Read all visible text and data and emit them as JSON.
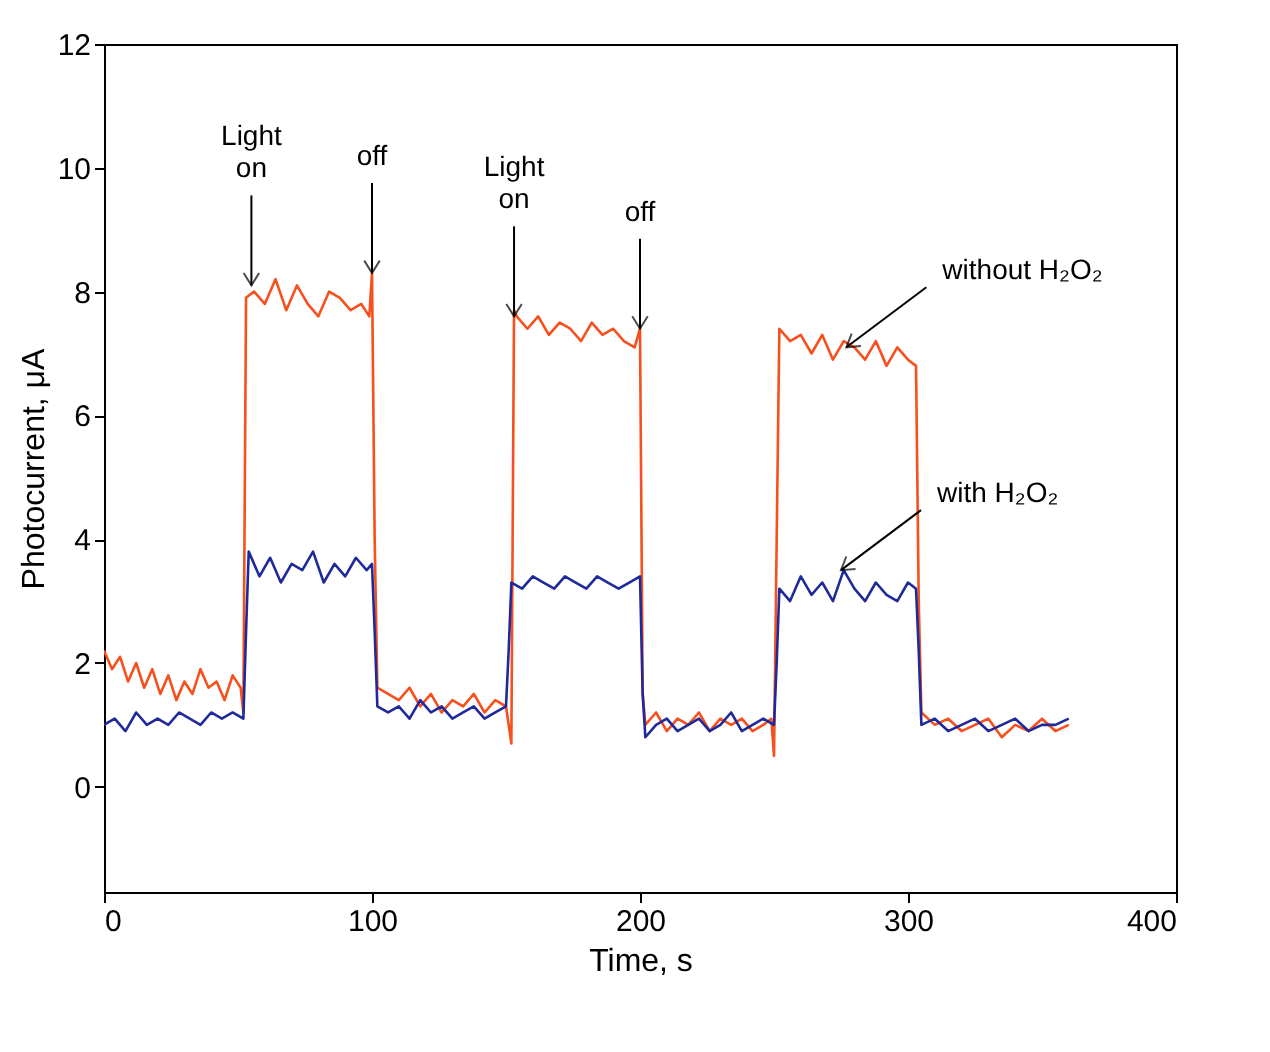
{
  "chart_data": {
    "type": "line",
    "xlabel": "Time, s",
    "ylabel": "Photocurrent, μA",
    "xlim": [
      0,
      400
    ],
    "xticks": [
      0,
      100,
      200,
      300,
      400
    ],
    "ylim": [
      -1.7,
      12
    ],
    "yticks": [
      0,
      2,
      4,
      6,
      8,
      10,
      12
    ],
    "grid": false,
    "marker": "none",
    "line_style": "solid",
    "series": [
      {
        "color": "#f5501e",
        "x": [
          0,
          3,
          6,
          9,
          12,
          15,
          18,
          21,
          24,
          27,
          30,
          33,
          36,
          39,
          42,
          45,
          48,
          51,
          52,
          53,
          56,
          60,
          64,
          68,
          72,
          76,
          80,
          84,
          88,
          92,
          96,
          99,
          100,
          101,
          102,
          106,
          110,
          114,
          118,
          122,
          126,
          130,
          134,
          138,
          142,
          146,
          150,
          152,
          153,
          154,
          158,
          162,
          166,
          170,
          174,
          178,
          182,
          186,
          190,
          194,
          198,
          200,
          201,
          202,
          206,
          210,
          214,
          218,
          222,
          226,
          230,
          234,
          238,
          242,
          246,
          249,
          250,
          251,
          252,
          256,
          260,
          264,
          268,
          272,
          276,
          280,
          284,
          288,
          292,
          296,
          300,
          303,
          304,
          305,
          310,
          315,
          320,
          325,
          330,
          335,
          340,
          345,
          350,
          355,
          360
        ],
        "values": [
          2.2,
          1.9,
          2.1,
          1.7,
          2.0,
          1.6,
          1.9,
          1.5,
          1.8,
          1.4,
          1.7,
          1.5,
          1.9,
          1.6,
          1.7,
          1.4,
          1.8,
          1.6,
          1.2,
          7.9,
          8.0,
          7.8,
          8.2,
          7.7,
          8.1,
          7.8,
          7.6,
          8.0,
          7.9,
          7.7,
          7.8,
          7.6,
          8.3,
          4.0,
          1.6,
          1.5,
          1.4,
          1.6,
          1.3,
          1.5,
          1.2,
          1.4,
          1.3,
          1.5,
          1.2,
          1.4,
          1.3,
          0.7,
          7.7,
          7.6,
          7.4,
          7.6,
          7.3,
          7.5,
          7.4,
          7.2,
          7.5,
          7.3,
          7.4,
          7.2,
          7.1,
          7.4,
          1.5,
          1.0,
          1.2,
          0.9,
          1.1,
          1.0,
          1.2,
          0.9,
          1.1,
          1.0,
          1.1,
          0.9,
          1.0,
          1.1,
          0.5,
          4.0,
          7.4,
          7.2,
          7.3,
          7.0,
          7.3,
          6.9,
          7.2,
          7.1,
          6.9,
          7.2,
          6.8,
          7.1,
          6.9,
          6.8,
          3.0,
          1.2,
          1.0,
          1.1,
          0.9,
          1.0,
          1.1,
          0.8,
          1.0,
          0.9,
          1.1,
          0.9,
          1.0
        ]
      },
      {
        "color": "#1f2a9a",
        "x": [
          0,
          4,
          8,
          12,
          16,
          20,
          24,
          28,
          32,
          36,
          40,
          44,
          48,
          52,
          53,
          54,
          58,
          62,
          66,
          70,
          74,
          78,
          82,
          86,
          90,
          94,
          98,
          100,
          101,
          102,
          106,
          110,
          114,
          118,
          122,
          126,
          130,
          134,
          138,
          142,
          146,
          150,
          151,
          152,
          156,
          160,
          164,
          168,
          172,
          176,
          180,
          184,
          188,
          192,
          196,
          200,
          201,
          202,
          206,
          210,
          214,
          218,
          222,
          226,
          230,
          234,
          238,
          242,
          246,
          250,
          251,
          252,
          256,
          260,
          264,
          268,
          272,
          276,
          280,
          284,
          288,
          292,
          296,
          300,
          303,
          304,
          305,
          310,
          315,
          320,
          325,
          330,
          335,
          340,
          345,
          350,
          355,
          360
        ],
        "values": [
          1.0,
          1.1,
          0.9,
          1.2,
          1.0,
          1.1,
          1.0,
          1.2,
          1.1,
          1.0,
          1.2,
          1.1,
          1.2,
          1.1,
          2.5,
          3.8,
          3.4,
          3.7,
          3.3,
          3.6,
          3.5,
          3.8,
          3.3,
          3.6,
          3.4,
          3.7,
          3.5,
          3.6,
          2.5,
          1.3,
          1.2,
          1.3,
          1.1,
          1.4,
          1.2,
          1.3,
          1.1,
          1.2,
          1.3,
          1.1,
          1.2,
          1.3,
          2.2,
          3.3,
          3.2,
          3.4,
          3.3,
          3.2,
          3.4,
          3.3,
          3.2,
          3.4,
          3.3,
          3.2,
          3.3,
          3.4,
          1.5,
          0.8,
          1.0,
          1.1,
          0.9,
          1.0,
          1.1,
          0.9,
          1.0,
          1.2,
          0.9,
          1.0,
          1.1,
          1.0,
          2.0,
          3.2,
          3.0,
          3.4,
          3.1,
          3.3,
          3.0,
          3.5,
          3.2,
          3.0,
          3.3,
          3.1,
          3.0,
          3.3,
          3.2,
          2.2,
          1.0,
          1.1,
          0.9,
          1.0,
          1.1,
          0.9,
          1.0,
          1.1,
          0.9,
          1.0,
          1.0,
          1.1
        ]
      }
    ],
    "annotations": [
      {
        "text": "Light\non",
        "x": 55,
        "y": 8.1
      },
      {
        "text": "off",
        "x": 100,
        "y": 8.3
      },
      {
        "text": "Light\non",
        "x": 153,
        "y": 7.6
      },
      {
        "text": "off",
        "x": 200,
        "y": 7.4
      },
      {
        "text": "without H₂O₂",
        "x": 277,
        "y": 7.1
      },
      {
        "text": "with H₂O₂",
        "x": 275,
        "y": 3.5
      }
    ]
  }
}
